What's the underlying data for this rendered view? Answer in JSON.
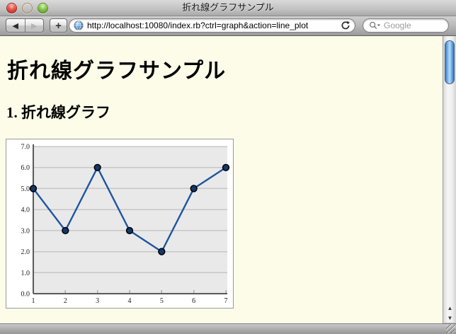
{
  "window": {
    "title": "折れ線グラフサンプル"
  },
  "toolbar": {
    "url": "http://localhost:10080/index.rb?ctrl=graph&action=line_plot",
    "search_placeholder": "Google",
    "icons": {
      "back": "◀",
      "forward": "▶",
      "new_tab": "+"
    }
  },
  "scrollbar": {
    "up": "▲",
    "down": "▼"
  },
  "content": {
    "heading": "折れ線グラフサンプル",
    "section": "1. 折れ線グラフ"
  },
  "chart_data": {
    "type": "line",
    "x": [
      1,
      2,
      3,
      4,
      5,
      6,
      7
    ],
    "values": [
      5,
      3,
      6,
      3,
      2,
      5,
      6
    ],
    "xlim": [
      1,
      7
    ],
    "ylim": [
      0,
      7
    ],
    "x_ticks": [
      "1",
      "2",
      "3",
      "4",
      "5",
      "6",
      "7"
    ],
    "y_ticks": [
      "0.0",
      "1.0",
      "2.0",
      "3.0",
      "4.0",
      "5.0",
      "6.0",
      "7.0"
    ],
    "title": "",
    "xlabel": "",
    "ylabel": "",
    "grid": "horizontal",
    "legend": "none",
    "colors": {
      "line": "#1d55a0",
      "marker_fill": "#12386e",
      "marker_stroke": "#000000",
      "plot_bg": "#e9e9e9",
      "gridline": "#c6c6c6",
      "axis": "#5a5a5a",
      "label": "#1a1a1a",
      "frame": "#9a9a9a"
    }
  }
}
